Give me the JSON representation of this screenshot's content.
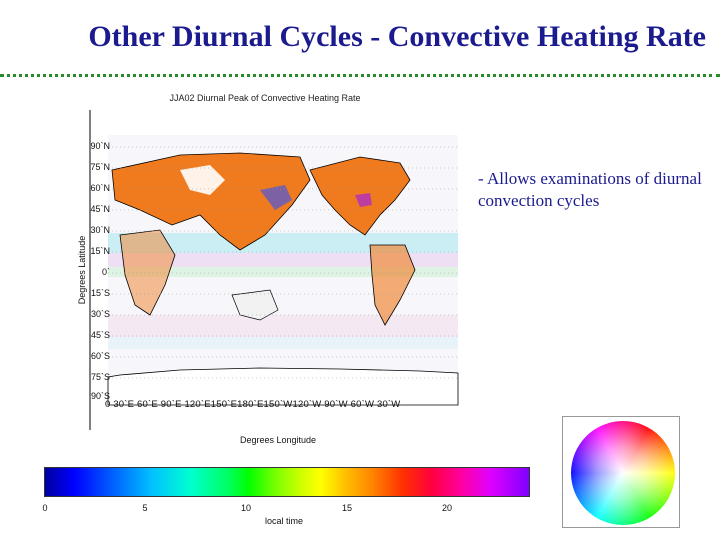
{
  "slide": {
    "title": "Other Diurnal Cycles - Convective Heating Rate",
    "bullet": "- Allows examinations of diurnal convection cycles"
  },
  "map": {
    "title": "JJA02 Diurnal Peak of Convective Heating Rate",
    "ylabel": "Degrees Latitude",
    "xlabel": "Degrees Longitude",
    "lat_ticks": [
      "90`N",
      "75`N",
      "60`N",
      "45`N",
      "30`N",
      "15`N",
      "0`",
      "15`S",
      "30`S",
      "45`S",
      "60`S",
      "75`S",
      "90`S"
    ],
    "lon_ticks": "0  30`E 60`E 90`E 120`E150`E180`E150`W120`W 90`W 60`W 30`W"
  },
  "colorbar": {
    "label": "local time",
    "ticks": [
      "0",
      "5",
      "10",
      "15",
      "20"
    ]
  },
  "colors": {
    "title": "#1b1b8f",
    "rule": "#2b8a2b",
    "land_peak": "#f07a1e"
  }
}
